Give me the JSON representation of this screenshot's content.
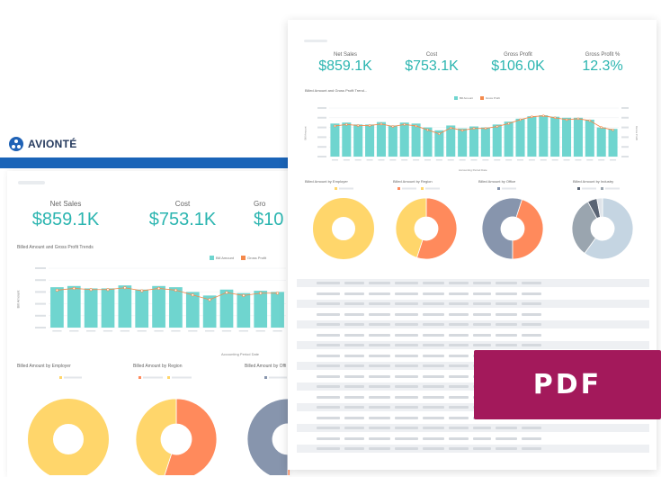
{
  "brand": {
    "name": "AVIONTÉ"
  },
  "colors": {
    "bill_amount": "#6fd5cf",
    "gross_profit": "#f4894b",
    "kpi_value": "#2bb5b0",
    "header_bar": "#1a64b8",
    "pdf_badge": "#a3195b"
  },
  "kpis": [
    {
      "label": "Net Sales",
      "value": "$859.1K"
    },
    {
      "label": "Cost",
      "value": "$753.1K"
    },
    {
      "label": "Gross Profit",
      "value": "$106.0K"
    },
    {
      "label": "Gross Profit %",
      "value": "12.3%"
    }
  ],
  "back_kpis": [
    {
      "label": "Net Sales",
      "value": "$859.1K"
    },
    {
      "label": "Cost",
      "value": "$753.1K"
    },
    {
      "label": "Gro",
      "value": "$10"
    }
  ],
  "trend_chart": {
    "title": "Billed Amount and Gross Profit Trends",
    "front_title": "Billed Amount and Gross Profit Trend...",
    "legend_bill": "Bill Amount",
    "legend_profit": "Gross Profit",
    "front_legend_bill": "Bill Amount",
    "front_legend_profit": "Gross Profit",
    "x_axis_label": "Accounting Period Date",
    "y_axis_label": "Bill Amount",
    "y2_axis_label": "Gross Profit"
  },
  "donuts": {
    "employer": "Billed Amount by Employer",
    "region": "Billed Amount by Region",
    "office": "Billed Amount by Office",
    "office_back": "Billed Amount by Offi",
    "industry": "Billed Amount by Industry"
  },
  "pdf_badge": {
    "label": "PDF"
  },
  "chart_data": [
    {
      "type": "bar",
      "title": "Billed Amount and Gross Profit Trends",
      "xlabel": "Accounting Period Date",
      "ylabel": "Bill Amount",
      "ylim": [
        0,
        100
      ],
      "categories": [
        "1",
        "2",
        "3",
        "4",
        "5",
        "6",
        "7",
        "8",
        "9",
        "10",
        "11",
        "12",
        "13",
        "14",
        "15",
        "16",
        "17",
        "18",
        "19",
        "20",
        "21",
        "22",
        "23",
        "24",
        "25"
      ],
      "series": [
        {
          "name": "Bill Amount",
          "values": [
            68,
            70,
            66,
            66,
            71,
            64,
            70,
            68,
            60,
            54,
            64,
            58,
            62,
            60,
            66,
            72,
            78,
            83,
            85,
            82,
            80,
            80,
            76,
            60,
            57
          ]
        },
        {
          "name": "Gross Profit",
          "values": [
            63,
            66,
            64,
            64,
            67,
            62,
            66,
            63,
            55,
            47,
            59,
            54,
            58,
            58,
            62,
            68,
            76,
            82,
            84,
            80,
            76,
            78,
            74,
            60,
            55
          ]
        }
      ]
    },
    {
      "type": "pie",
      "title": "Billed Amount by Employer",
      "values": [
        100
      ],
      "colors": [
        "#ffd66b"
      ]
    },
    {
      "type": "pie",
      "title": "Billed Amount by Region",
      "values": [
        55,
        45
      ],
      "colors": [
        "#ff8a5c",
        "#ffd66b"
      ]
    },
    {
      "type": "pie",
      "title": "Billed Amount by Office",
      "values": [
        55,
        45
      ],
      "colors": [
        "#8795ad",
        "#ff8a5c"
      ]
    },
    {
      "type": "pie",
      "title": "Billed Amount by Industry",
      "values": [
        60,
        32,
        5,
        3
      ],
      "colors": [
        "#c5d5e2",
        "#9aa5af",
        "#5a6474",
        "#dfe4ea"
      ]
    }
  ]
}
